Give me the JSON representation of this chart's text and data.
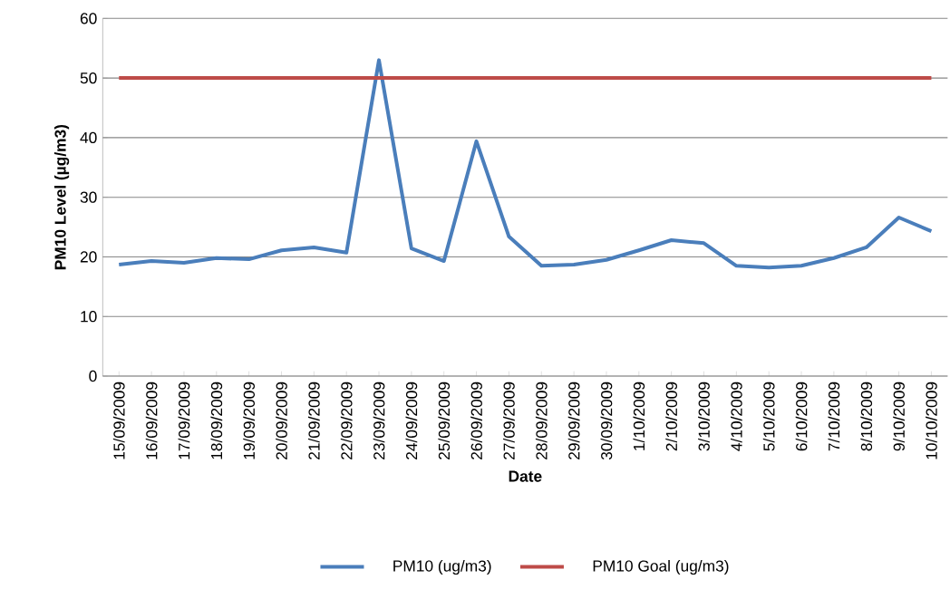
{
  "chart_data": {
    "type": "line",
    "xlabel": "Date",
    "ylabel": "PM10 Level (µg/m3)",
    "categories": [
      "15/09/2009",
      "16/09/2009",
      "17/09/2009",
      "18/09/2009",
      "19/09/2009",
      "20/09/2009",
      "21/09/2009",
      "22/09/2009",
      "23/09/2009",
      "24/09/2009",
      "25/09/2009",
      "26/09/2009",
      "27/09/2009",
      "28/09/2009",
      "29/09/2009",
      "30/09/2009",
      "1/10/2009",
      "2/10/2009",
      "3/10/2009",
      "4/10/2009",
      "5/10/2009",
      "6/10/2009",
      "7/10/2009",
      "8/10/2009",
      "9/10/2009",
      "10/10/2009"
    ],
    "series": [
      {
        "name": "PM10 (ug/m3)",
        "color": "#4a7ebb",
        "values": [
          18.7,
          19.3,
          19.0,
          19.8,
          19.6,
          21.1,
          21.6,
          20.7,
          53.0,
          21.4,
          19.3,
          39.4,
          23.4,
          18.5,
          18.7,
          19.5,
          21.1,
          22.8,
          22.3,
          18.5,
          18.2,
          18.5,
          19.8,
          21.6,
          26.6,
          24.3
        ]
      },
      {
        "name": "PM10 Goal (ug/m3)",
        "color": "#be4b48",
        "values": [
          50,
          50,
          50,
          50,
          50,
          50,
          50,
          50,
          50,
          50,
          50,
          50,
          50,
          50,
          50,
          50,
          50,
          50,
          50,
          50,
          50,
          50,
          50,
          50,
          50,
          50
        ]
      }
    ],
    "ylim": [
      0,
      60
    ],
    "yticks": [
      0,
      10,
      20,
      30,
      40,
      50,
      60
    ],
    "grid": "y",
    "legend": "bottom",
    "marker": "none",
    "line_style": "solid"
  }
}
